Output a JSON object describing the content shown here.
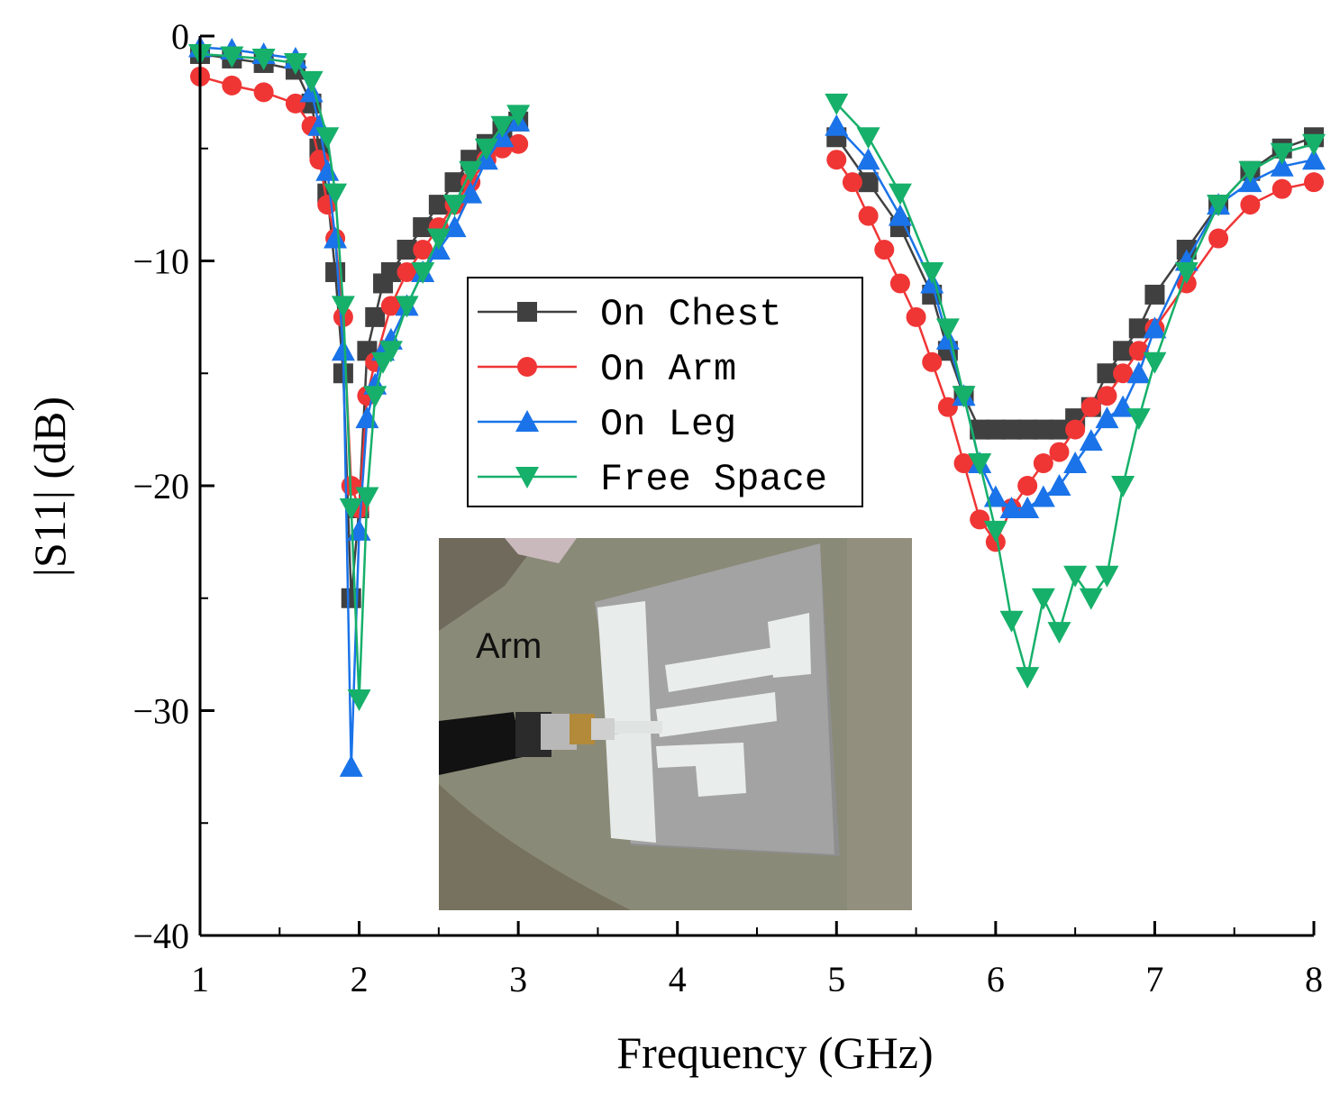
{
  "chart_data": {
    "type": "line",
    "xlabel": "Frequency (GHz)",
    "ylabel": "|S11| (dB)",
    "xlim": [
      1,
      8
    ],
    "ylim": [
      -40,
      0
    ],
    "x_ticks": [
      "1",
      "2",
      "3",
      "4",
      "5",
      "6",
      "7",
      "8"
    ],
    "y_ticks": [
      "0",
      "−10",
      "−20",
      "−30",
      "−40"
    ],
    "grid": false,
    "legend_position": "center",
    "series": [
      {
        "name": "On Chest",
        "color": "#404040",
        "marker": "square",
        "segments": [
          {
            "x": [
              1.0,
              1.2,
              1.4,
              1.6,
              1.7,
              1.75,
              1.8,
              1.85,
              1.9,
              1.95,
              2.0,
              2.05,
              2.1,
              2.15,
              2.2,
              2.3,
              2.4,
              2.5,
              2.6,
              2.7,
              2.8,
              2.9,
              3.0
            ],
            "y": [
              -0.8,
              -1.0,
              -1.2,
              -1.5,
              -3.0,
              -5.0,
              -7.0,
              -10.5,
              -15.0,
              -25.0,
              -21.0,
              -14.0,
              -12.5,
              -11.0,
              -10.5,
              -9.5,
              -8.5,
              -7.5,
              -6.5,
              -5.5,
              -4.8,
              -4.2,
              -3.8
            ]
          },
          {
            "x": [
              5.0,
              5.2,
              5.4,
              5.6,
              5.7,
              5.8,
              5.9,
              6.0,
              6.1,
              6.2,
              6.3,
              6.4,
              6.5,
              6.6,
              6.7,
              6.8,
              6.9,
              7.0,
              7.2,
              7.4,
              7.6,
              7.8,
              8.0
            ],
            "y": [
              -4.5,
              -6.5,
              -8.5,
              -11.5,
              -14.0,
              -16.0,
              -17.5,
              -17.5,
              -17.5,
              -17.5,
              -17.5,
              -17.5,
              -17.0,
              -16.5,
              -15.0,
              -14.0,
              -13.0,
              -11.5,
              -9.5,
              -7.5,
              -6.0,
              -5.0,
              -4.5
            ]
          }
        ]
      },
      {
        "name": "On Arm",
        "color": "#f03535",
        "marker": "circle",
        "segments": [
          {
            "x": [
              1.0,
              1.2,
              1.4,
              1.6,
              1.7,
              1.75,
              1.8,
              1.85,
              1.9,
              1.95,
              2.0,
              2.05,
              2.1,
              2.2,
              2.3,
              2.4,
              2.5,
              2.6,
              2.7,
              2.8,
              2.9,
              3.0
            ],
            "y": [
              -1.8,
              -2.2,
              -2.5,
              -3.0,
              -4.0,
              -5.5,
              -7.5,
              -9.0,
              -12.5,
              -20.0,
              -21.0,
              -16.0,
              -14.5,
              -12.0,
              -10.5,
              -9.5,
              -8.5,
              -7.5,
              -6.5,
              -5.5,
              -5.0,
              -4.8
            ]
          },
          {
            "x": [
              5.0,
              5.1,
              5.2,
              5.3,
              5.4,
              5.5,
              5.6,
              5.7,
              5.8,
              5.9,
              6.0,
              6.1,
              6.2,
              6.3,
              6.4,
              6.5,
              6.6,
              6.7,
              6.8,
              6.9,
              7.0,
              7.2,
              7.4,
              7.6,
              7.8,
              8.0
            ],
            "y": [
              -5.5,
              -6.5,
              -8.0,
              -9.5,
              -11.0,
              -12.5,
              -14.5,
              -16.5,
              -19.0,
              -21.5,
              -22.5,
              -21.0,
              -20.0,
              -19.0,
              -18.5,
              -17.5,
              -16.5,
              -16.0,
              -15.0,
              -14.0,
              -13.0,
              -11.0,
              -9.0,
              -7.5,
              -6.8,
              -6.5
            ]
          }
        ]
      },
      {
        "name": "On Leg",
        "color": "#1a73e8",
        "marker": "triangle-up",
        "segments": [
          {
            "x": [
              1.0,
              1.2,
              1.4,
              1.6,
              1.7,
              1.75,
              1.8,
              1.85,
              1.9,
              1.95,
              2.0,
              2.05,
              2.1,
              2.15,
              2.2,
              2.3,
              2.4,
              2.5,
              2.6,
              2.7,
              2.8,
              2.9,
              3.0
            ],
            "y": [
              -0.5,
              -0.6,
              -0.8,
              -1.0,
              -2.5,
              -4.0,
              -6.0,
              -9.0,
              -14.0,
              -32.5,
              -22.0,
              -17.0,
              -15.5,
              -14.0,
              -13.5,
              -12.0,
              -10.5,
              -9.5,
              -8.5,
              -7.0,
              -5.5,
              -4.5,
              -3.8
            ]
          },
          {
            "x": [
              5.0,
              5.2,
              5.4,
              5.6,
              5.7,
              5.8,
              5.9,
              6.0,
              6.1,
              6.2,
              6.3,
              6.4,
              6.5,
              6.6,
              6.7,
              6.8,
              6.9,
              7.0,
              7.2,
              7.4,
              7.6,
              7.8,
              8.0
            ],
            "y": [
              -4.0,
              -5.5,
              -8.0,
              -11.0,
              -13.5,
              -16.0,
              -19.0,
              -20.5,
              -21.0,
              -21.0,
              -20.5,
              -20.0,
              -19.0,
              -18.0,
              -17.0,
              -16.5,
              -15.0,
              -13.0,
              -10.0,
              -7.5,
              -6.5,
              -5.8,
              -5.5
            ]
          }
        ]
      },
      {
        "name": "Free Space",
        "color": "#16b06a",
        "marker": "triangle-down",
        "segments": [
          {
            "x": [
              1.0,
              1.2,
              1.4,
              1.6,
              1.7,
              1.8,
              1.85,
              1.9,
              1.95,
              2.0,
              2.05,
              2.1,
              2.15,
              2.2,
              2.3,
              2.4,
              2.5,
              2.6,
              2.7,
              2.8,
              2.9,
              3.0
            ],
            "y": [
              -0.8,
              -0.9,
              -1.0,
              -1.2,
              -2.0,
              -4.5,
              -7.0,
              -12.0,
              -21.0,
              -29.5,
              -20.5,
              -16.0,
              -14.5,
              -14.0,
              -12.0,
              -10.5,
              -9.0,
              -7.5,
              -6.0,
              -5.0,
              -4.0,
              -3.5
            ]
          },
          {
            "x": [
              5.0,
              5.2,
              5.4,
              5.6,
              5.7,
              5.8,
              5.9,
              6.0,
              6.1,
              6.2,
              6.3,
              6.4,
              6.5,
              6.6,
              6.7,
              6.8,
              6.9,
              7.0,
              7.2,
              7.4,
              7.6,
              7.8,
              8.0
            ],
            "y": [
              -3.0,
              -4.5,
              -7.0,
              -10.5,
              -13.0,
              -16.0,
              -19.0,
              -22.0,
              -26.0,
              -28.5,
              -25.0,
              -26.5,
              -24.0,
              -25.0,
              -24.0,
              -20.0,
              -17.0,
              -14.5,
              -10.5,
              -7.5,
              -6.0,
              -5.2,
              -4.8
            ]
          }
        ]
      }
    ]
  },
  "inset": {
    "label": "Arm"
  }
}
